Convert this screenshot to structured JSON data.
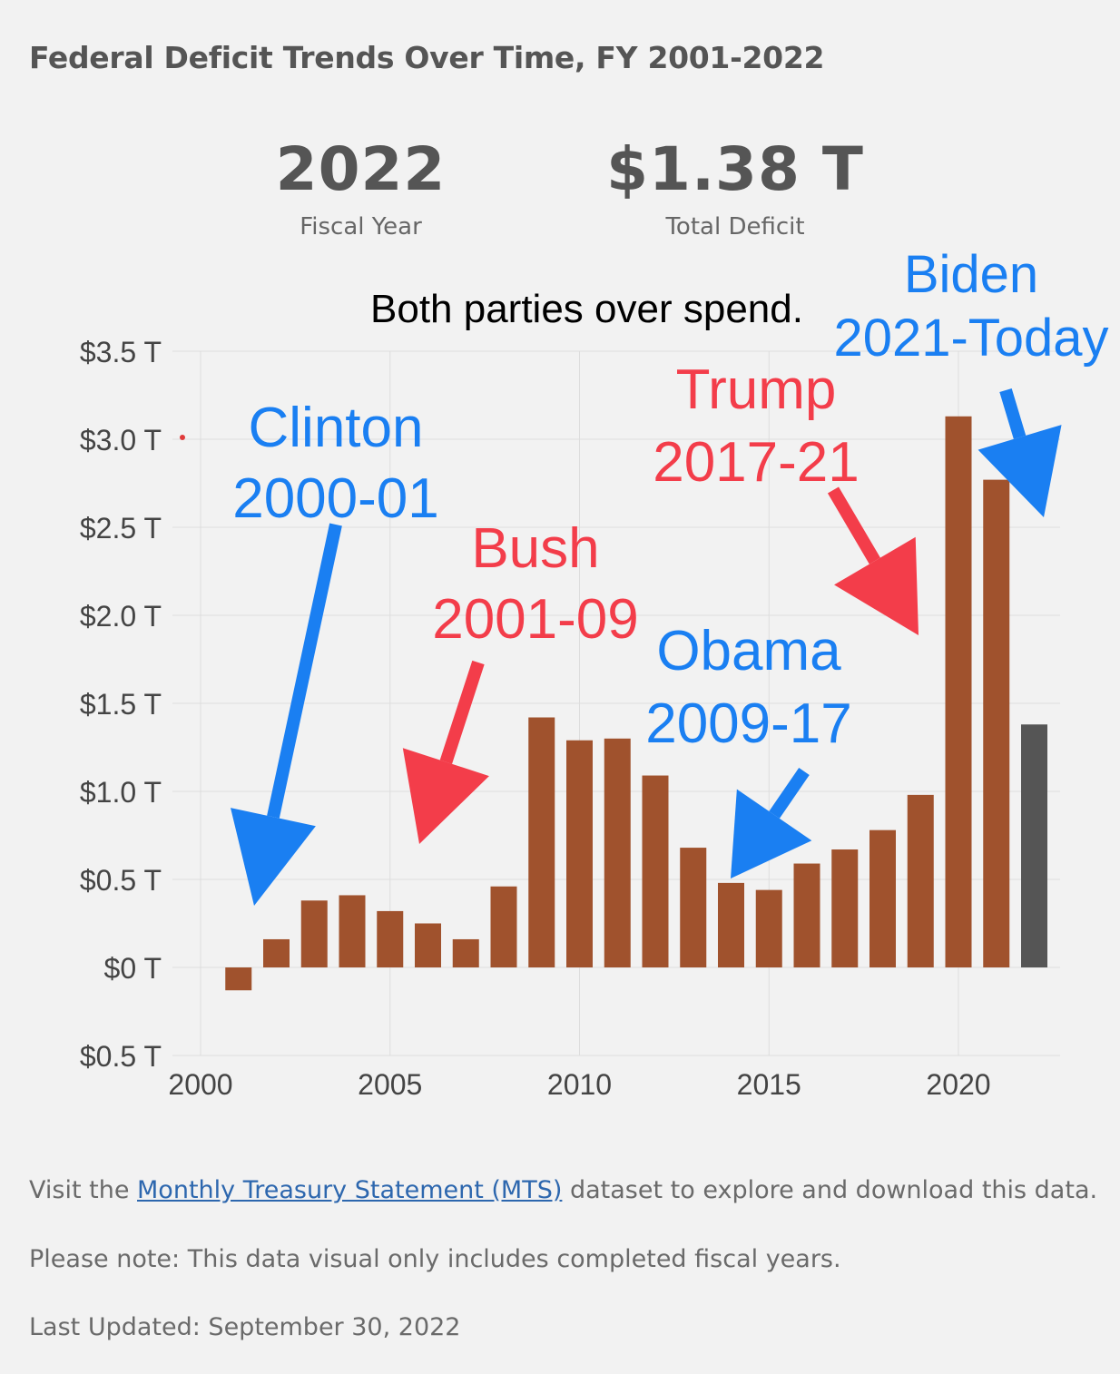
{
  "title": "Federal Deficit Trends Over Time, FY 2001-2022",
  "kpis": {
    "year": {
      "value": "2022",
      "label": "Fiscal Year"
    },
    "deficit": {
      "value": "$1.38 T",
      "label": "Total Deficit"
    }
  },
  "chart_data": {
    "type": "bar",
    "title": "Both parties over spend.",
    "xlabel": "",
    "ylabel": "",
    "x": [
      2001,
      2002,
      2003,
      2004,
      2005,
      2006,
      2007,
      2008,
      2009,
      2010,
      2011,
      2012,
      2013,
      2014,
      2015,
      2016,
      2017,
      2018,
      2019,
      2020,
      2021,
      2022
    ],
    "values": [
      -0.13,
      0.16,
      0.38,
      0.41,
      0.32,
      0.25,
      0.16,
      0.46,
      1.42,
      1.29,
      1.3,
      1.09,
      0.68,
      0.48,
      0.44,
      0.59,
      0.67,
      0.78,
      0.98,
      3.13,
      2.77,
      1.38
    ],
    "highlight_index": 21,
    "ylim": [
      -0.5,
      3.5
    ],
    "xlim": [
      2000,
      2023
    ],
    "y_ticks": [
      3.5,
      3.0,
      2.5,
      2.0,
      1.5,
      1.0,
      0.5,
      0,
      -0.5
    ],
    "y_tick_labels": [
      "$3.5 T",
      "$3.0 T",
      "$2.5 T",
      "$2.0 T",
      "$1.5 T",
      "$1.0 T",
      "$0.5 T",
      "$0 T",
      "$0.5 T"
    ],
    "x_ticks": [
      2000,
      2005,
      2010,
      2015,
      2020
    ],
    "x_tick_labels": [
      "2000",
      "2005",
      "2010",
      "2015",
      "2020"
    ],
    "grid": true,
    "colors": {
      "bar": "#a0522d",
      "highlight": "#555555",
      "grid": "#dddddd",
      "red": "#f33d4a",
      "blue": "#1a7ff2"
    },
    "annotations": [
      {
        "name": "clinton",
        "lines": [
          "Clinton",
          "2000-01"
        ],
        "color": "blue"
      },
      {
        "name": "bush",
        "lines": [
          "Bush",
          "2001-09"
        ],
        "color": "red"
      },
      {
        "name": "obama",
        "lines": [
          "Obama",
          "2009-17"
        ],
        "color": "blue"
      },
      {
        "name": "trump",
        "lines": [
          "Trump",
          "2017-21"
        ],
        "color": "red"
      },
      {
        "name": "biden",
        "lines": [
          "Biden",
          "2021-Today"
        ],
        "color": "blue"
      }
    ]
  },
  "footer": {
    "visit_prefix": "Visit the ",
    "link_text": "Monthly Treasury Statement (MTS)",
    "visit_suffix": " dataset to explore and download this data.",
    "note": "Please note: This data visual only includes completed fiscal years.",
    "updated": "Last Updated: September 30, 2022"
  }
}
